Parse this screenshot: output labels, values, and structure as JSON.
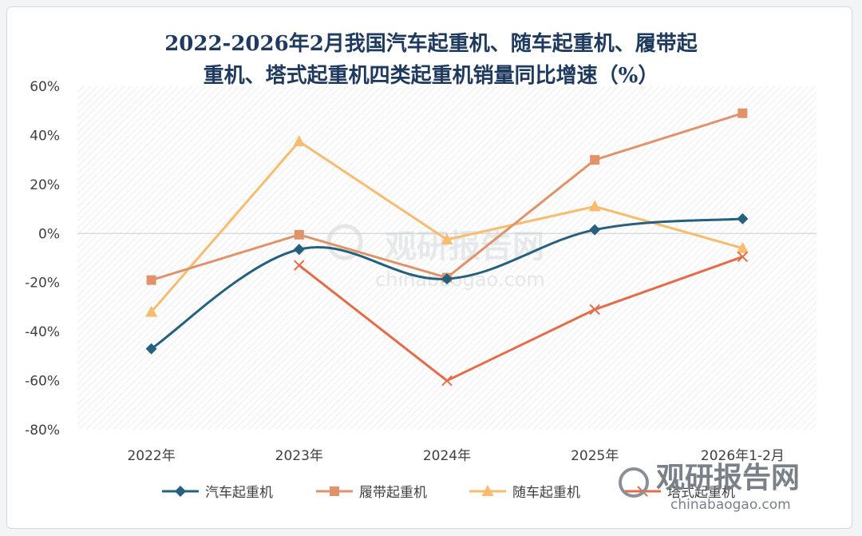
{
  "chart_data": {
    "type": "line",
    "title_lines": [
      "2022-2026年2月我国汽车起重机、随车起重机、履带起",
      "重机、塔式起重机四类起重机销量同比增速（%）"
    ],
    "categories": [
      "2022年",
      "2023年",
      "2024年",
      "2025年",
      "2026年1-2月"
    ],
    "ylim": [
      -80,
      60
    ],
    "yticks": [
      60,
      40,
      20,
      0,
      -20,
      -40,
      -60,
      -80
    ],
    "ytick_labels": [
      "60%",
      "40%",
      "20%",
      "0%",
      "-20%",
      "-40%",
      "-60%",
      "-80%"
    ],
    "grid": false,
    "legend_position": "bottom",
    "series": [
      {
        "name": "汽车起重机",
        "values": [
          -47,
          -6.5,
          -18.5,
          1.5,
          6
        ],
        "color": "#25607e",
        "marker": "diamond",
        "smooth": true
      },
      {
        "name": "履带起重机",
        "values": [
          -19,
          -0.5,
          -18,
          30,
          49
        ],
        "color": "#e0926a",
        "marker": "square",
        "smooth": false
      },
      {
        "name": "随车起重机",
        "values": [
          -32,
          37.5,
          -2.5,
          11,
          -6
        ],
        "color": "#f7bc6e",
        "marker": "triangle",
        "smooth": false
      },
      {
        "name": "塔式起重机",
        "values": [
          null,
          -13,
          -60,
          -31,
          -9.5
        ],
        "color": "#e46c4a",
        "marker": "x",
        "smooth": false
      }
    ]
  },
  "watermark": {
    "center_cn": "观研报告网",
    "center_en": "chinabaogao.com",
    "corner_cn": "观研报告网",
    "corner_en": "chinabaogao.com"
  }
}
